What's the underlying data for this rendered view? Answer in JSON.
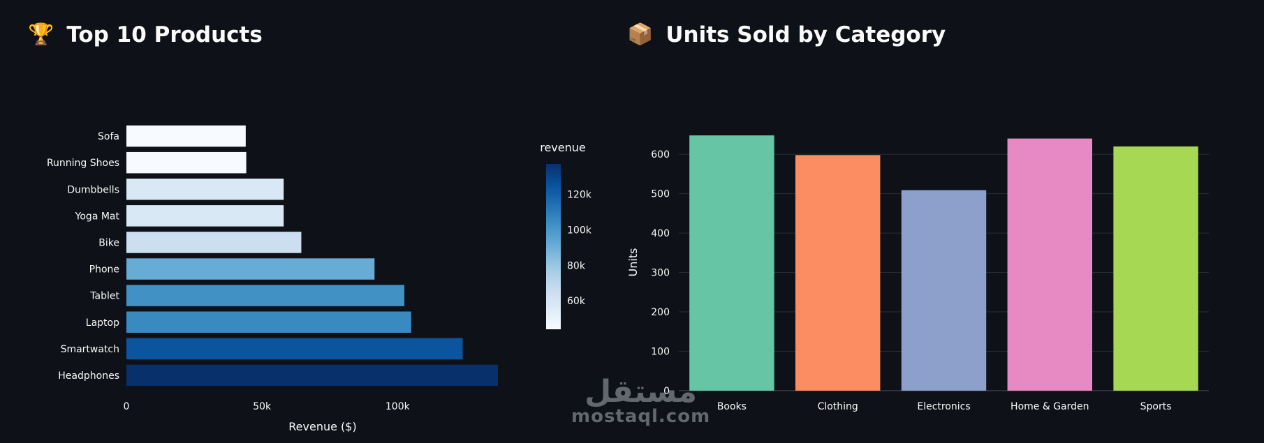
{
  "left_panel": {
    "emoji": "🏆",
    "title": "Top 10 Products"
  },
  "right_panel": {
    "emoji": "📦",
    "title": "Units Sold by Category"
  },
  "chart_data": [
    {
      "type": "bar",
      "orientation": "horizontal",
      "title": "",
      "categories": [
        "Sofa",
        "Running Shoes",
        "Dumbbells",
        "Yoga Mat",
        "Bike",
        "Phone",
        "Tablet",
        "Laptop",
        "Smartwatch",
        "Headphones"
      ],
      "values": [
        44000,
        44200,
        58000,
        58000,
        64500,
        91500,
        102500,
        105000,
        124000,
        137000
      ],
      "xlabel": "Revenue ($)",
      "ylabel": "",
      "xlim": [
        0,
        137000
      ],
      "x_ticks": [
        0,
        50000,
        100000
      ],
      "x_tick_labels": [
        "0",
        "50k",
        "100k"
      ],
      "colorscale": "Blues",
      "colorbar": {
        "title": "revenue",
        "range": [
          44000,
          137000
        ],
        "ticks": [
          60000,
          80000,
          100000,
          120000
        ],
        "tick_labels": [
          "60k",
          "80k",
          "100k",
          "120k"
        ]
      },
      "grid": false
    },
    {
      "type": "bar",
      "title": "",
      "categories": [
        "Books",
        "Clothing",
        "Electronics",
        "Home & Garden",
        "Sports"
      ],
      "values": [
        648,
        598,
        509,
        640,
        620
      ],
      "colors": [
        "#66c5a5",
        "#fc8d62",
        "#8da0cb",
        "#e78ac3",
        "#a6d854"
      ],
      "xlabel": "",
      "ylabel": "Units",
      "ylim": [
        0,
        680
      ],
      "y_ticks": [
        0,
        100,
        200,
        300,
        400,
        500,
        600
      ],
      "y_tick_labels": [
        "0",
        "100",
        "200",
        "300",
        "400",
        "500",
        "600"
      ],
      "grid": true
    }
  ],
  "watermark": {
    "arabic": "مستقل",
    "latin": "mostaql.com"
  }
}
